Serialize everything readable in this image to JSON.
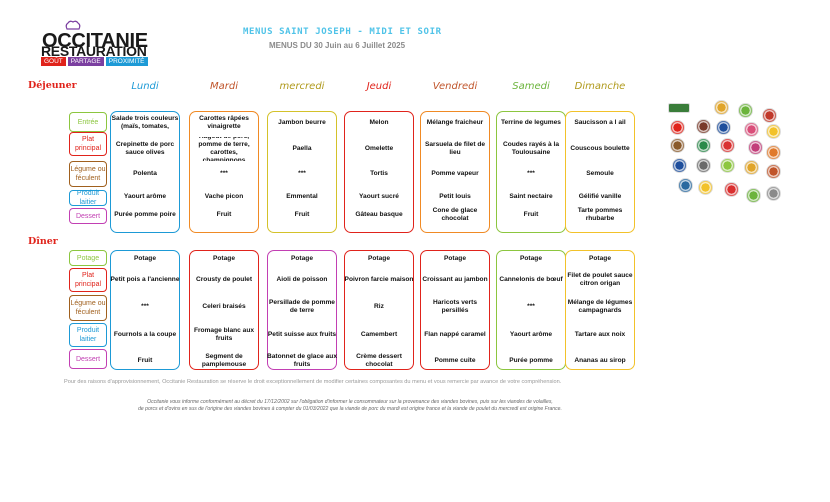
{
  "brand": {
    "line1": "OCCITANIE",
    "line2": "RESTAURATION",
    "tags": [
      "GOÛT",
      "PARTAGE",
      "PROXIMITÉ"
    ],
    "tag_colors": [
      "#e0231b",
      "#7b3fa0",
      "#1d9ad6"
    ]
  },
  "header": {
    "title": "MENUS SAINT JOSEPH - MIDI ET SOIR",
    "subtitle": "MENUS DU 30 Juin au 6 Juillet 2025"
  },
  "days": [
    {
      "label": "Lundi",
      "color": "#1d9ad6"
    },
    {
      "label": "Mardi",
      "color": "#c0552b"
    },
    {
      "label": "mercredi",
      "color": "#b09a1c"
    },
    {
      "label": "Jeudi",
      "color": "#e0231b"
    },
    {
      "label": "Vendredi",
      "color": "#c0552b"
    },
    {
      "label": "Samedi",
      "color": "#6cb43c"
    },
    {
      "label": "Dimanche",
      "color": "#b09a1c"
    }
  ],
  "lunch": {
    "label": "Déjeuner",
    "categories": [
      {
        "label": "Entrée",
        "color": "#8cc63f"
      },
      {
        "label": "Plat principal",
        "color": "#e0231b"
      },
      {
        "label": "Légume ou féculent",
        "color": "#a0601e"
      },
      {
        "label": "Produit laitier",
        "color": "#1d9ad6"
      },
      {
        "label": "Dessert",
        "color": "#c23fb3"
      }
    ],
    "columns": [
      {
        "border": "#1d9ad6",
        "items": [
          "Salade trois couleurs (maïs, tomates,",
          "Crepinette de porc sauce olives",
          "Polenta",
          "Yaourt arôme",
          "Purée pomme poire"
        ]
      },
      {
        "border": "#f08a24",
        "items": [
          "Carottes râpées vinaigrette",
          "Hagout de porc, pomme de terre, carottes, champignons",
          "***",
          "Vache picon",
          "Fruit"
        ]
      },
      {
        "border": "#d4c22a",
        "items": [
          "Jambon beurre",
          "Paella",
          "***",
          "Emmental",
          "Fruit"
        ]
      },
      {
        "border": "#e0231b",
        "items": [
          "Melon",
          "Omelette",
          "Tortis",
          "Yaourt sucré",
          "Gâteau basque"
        ]
      },
      {
        "border": "#f08a24",
        "items": [
          "Mélange fraicheur",
          "Sarsuela de filet de lieu",
          "Pomme vapeur",
          "Petit louis",
          "Cone de glace chocolat"
        ]
      },
      {
        "border": "#8cc63f",
        "items": [
          "Terrine de legumes",
          "Coudes rayés à la Toulousaine",
          "***",
          "Saint nectaire",
          "Fruit"
        ]
      },
      {
        "border": "#f2c22a",
        "items": [
          "Saucisson a l ail",
          "Couscous boulette",
          "Semoule",
          "Gélifié vanille",
          "Tarte pommes rhubarbe"
        ]
      }
    ]
  },
  "dinner": {
    "label": "Dîner",
    "categories": [
      {
        "label": "Potage",
        "color": "#8cc63f"
      },
      {
        "label": "Plat principal",
        "color": "#e0231b"
      },
      {
        "label": "Légume ou féculent",
        "color": "#a0601e"
      },
      {
        "label": "Produit laitier",
        "color": "#1d9ad6"
      },
      {
        "label": "Dessert",
        "color": "#c23fb3"
      }
    ],
    "columns": [
      {
        "border": "#1d9ad6",
        "items": [
          "Potage",
          "Petit pois a l'ancienne",
          "***",
          "Fournols a la coupe",
          "Fruit"
        ]
      },
      {
        "border": "#e0231b",
        "items": [
          "Potage",
          "Crousty de poulet",
          "Celeri braisés",
          "Fromage blanc aux fruits",
          "Segment de pamplemouse"
        ]
      },
      {
        "border": "#c23fb3",
        "items": [
          "Potage",
          "Aioli de poisson",
          "Persillade de pomme de terre",
          "Petit suisse aux fruits",
          "Batonnet de glace aux fruits"
        ]
      },
      {
        "border": "#e0231b",
        "items": [
          "Potage",
          "Poivron farcie maison",
          "Riz",
          "Camembert",
          "Crème dessert chocolat"
        ]
      },
      {
        "border": "#e0231b",
        "items": [
          "Potage",
          "Croissant au jambon",
          "Haricots verts persillés",
          "Flan nappé caramel",
          "Pomme cuite"
        ]
      },
      {
        "border": "#8cc63f",
        "items": [
          "Potage",
          "Cannelonis de bœuf",
          "***",
          "Yaourt arôme",
          "Purée pomme"
        ]
      },
      {
        "border": "#f2c22a",
        "items": [
          "Potage",
          "Filet de poulet sauce citron origan",
          "Mélange de légumes campagnards",
          "Tartare aux noix",
          "Ananas au sirop"
        ]
      }
    ]
  },
  "footer": {
    "note": "Pour des raisons d'approvisionnement, Occitanie Restauration se réserve le droit exceptionnellement de modifier certaines composantes du menu et vous remercie par avance de votre compréhension.",
    "legal_line1": "Occitanie vous informe conformément au décret du 17/12/2002 sur l'obligation d'informer le consommateur sur la provenance des viandes bovines, puis sur les viandes de volailles,",
    "legal_line2": "de porcs et d'ovins en sus de l'origine des viandes bovines à compter du 01/03/2022 que la viande de porc du mardi est origine france et la viande de poulet du mercredi est origine France."
  },
  "label_colors": [
    "#3a7d3a",
    "#e0a52b",
    "#6cb43c",
    "#c0392b",
    "#e0231b",
    "#7a3a2a",
    "#1f4f9c",
    "#d94f7a",
    "#f2c22a",
    "#8a5a2b",
    "#2a8a4a",
    "#d93030",
    "#c23f7a",
    "#e07a2b",
    "#1f4f9c",
    "#6a6a6a",
    "#8cc63f",
    "#e0a52b",
    "#c0552b",
    "#2a6aa0",
    "#f2c22a",
    "#d93030",
    "#6cb43c",
    "#8a8a8a"
  ]
}
